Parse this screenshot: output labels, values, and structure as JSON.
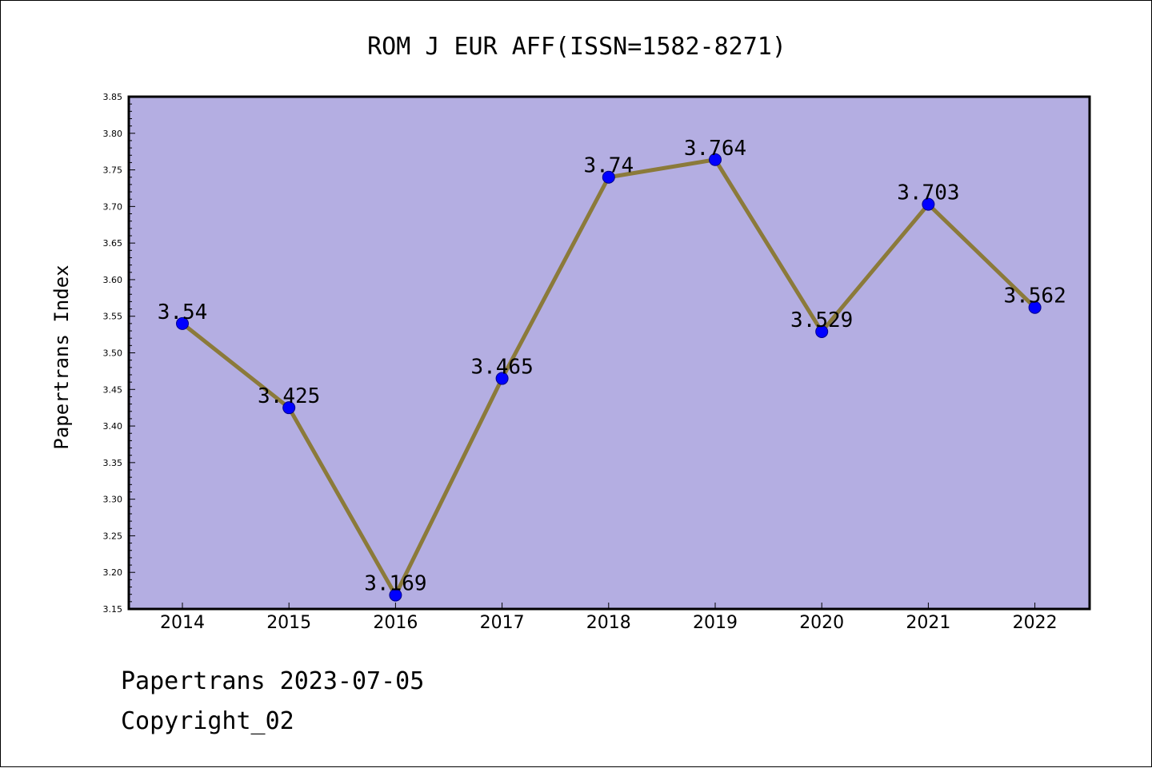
{
  "footer": {
    "date_text": "Papertrans 2023-07-05",
    "copyright_text": "Copyright_02"
  },
  "colors": {
    "plot_background": "#b4aee2",
    "line": "#8b7a3a",
    "marker": "#0000ff",
    "marker_edge": "#00008b"
  },
  "chart_data": {
    "type": "line",
    "title": "ROM J EUR AFF(ISSN=1582-8271)",
    "xlabel": "",
    "ylabel": "Papertrans Index",
    "categories": [
      "2014",
      "2015",
      "2016",
      "2017",
      "2018",
      "2019",
      "2020",
      "2021",
      "2022"
    ],
    "series": [
      {
        "values": [
          3.54,
          3.425,
          3.169,
          3.465,
          3.74,
          3.764,
          3.529,
          3.703,
          3.562
        ],
        "labels": [
          "3.54",
          "3.425",
          "3.169",
          "3.465",
          "3.74",
          "3.764",
          "3.529",
          "3.703",
          "3.562"
        ]
      }
    ],
    "ylim": [
      3.15,
      3.85
    ],
    "yticks": [
      "3.15",
      "3.20",
      "3.25",
      "3.30",
      "3.35",
      "3.40",
      "3.45",
      "3.50",
      "3.55",
      "3.60",
      "3.65",
      "3.70",
      "3.75",
      "3.80",
      "3.85"
    ],
    "grid": false,
    "legend": "none"
  }
}
